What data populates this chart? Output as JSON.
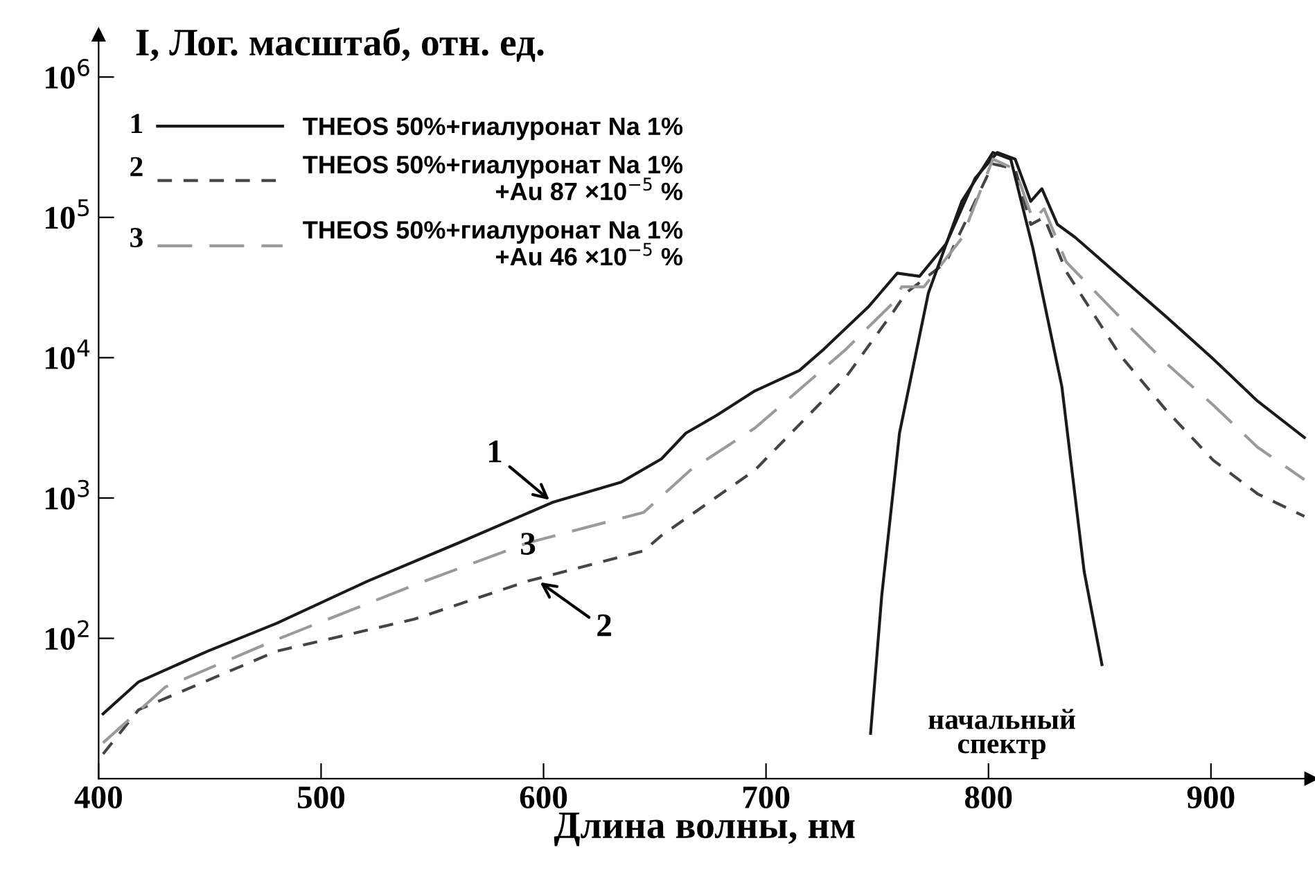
{
  "chart_data": {
    "type": "line",
    "xlabel": "Длина волны, нм",
    "ylabel": "I, Лог. масштаб, отн. ед.",
    "xlim": [
      400,
      945
    ],
    "xticks": [
      400,
      500,
      600,
      700,
      800,
      900
    ],
    "ylim": [
      10,
      2000000
    ],
    "log": true,
    "yticks": [
      {
        "value": 100,
        "label": "10$^{2}$"
      },
      {
        "value": 1000,
        "label": "10$^{3}$"
      },
      {
        "value": 10000,
        "label": "10$^{4}$"
      },
      {
        "value": 100000,
        "label": "10$^{5}$"
      },
      {
        "value": 1000000,
        "label": "10$^{6}$"
      }
    ],
    "grid": false,
    "legend": "top left",
    "series": [
      {
        "name": "THEOS 50%+гиалуронат Na 1%",
        "color": "#1a1a1a",
        "line_style": "solid",
        "x": [
          402,
          418,
          449,
          480,
          521,
          562,
          604,
          635,
          653,
          664,
          678,
          695,
          715,
          726,
          746,
          759,
          769,
          781,
          794,
          804,
          812,
          819,
          824,
          831,
          839,
          859,
          880,
          901,
          921,
          942
        ],
        "values": [
          29,
          49,
          81,
          128,
          256,
          480,
          930,
          1300,
          1900,
          2900,
          3900,
          5800,
          8100,
          11500,
          23000,
          40000,
          38000,
          65000,
          190000,
          290000,
          260000,
          130000,
          160000,
          89000,
          72000,
          38000,
          19500,
          9800,
          4900,
          2700
        ]
      },
      {
        "name": "THEOS 50%+гиалуронат Na 1%\n+Au 87 ×10$^{−5}$ %",
        "color": "#444444",
        "line_style": "dashed",
        "x": [
          402,
          418,
          480,
          542,
          593,
          645,
          653,
          695,
          736,
          757,
          763,
          781,
          802,
          812,
          819,
          825,
          835,
          859,
          880,
          901,
          921,
          942
        ],
        "values": [
          15,
          31,
          81,
          137,
          256,
          420,
          540,
          1580,
          7300,
          21000,
          29000,
          48000,
          240000,
          222000,
          89000,
          100000,
          41000,
          10500,
          4200,
          1860,
          1070,
          740
        ]
      },
      {
        "name": "THEOS 50%+гиалуронат Na 1%\n+Au 46 ×10$^{−5}$ %",
        "color": "#9a9a9a",
        "line_style": "dashed",
        "x": [
          402,
          430,
          480,
          542,
          593,
          645,
          666,
          695,
          736,
          757,
          761,
          771,
          788,
          802,
          812,
          820,
          825,
          835,
          859,
          880,
          901,
          921,
          942
        ],
        "values": [
          18,
          45,
          98,
          240,
          480,
          790,
          1580,
          3150,
          11500,
          24500,
          32000,
          32000,
          71000,
          260000,
          220000,
          96000,
          115000,
          48000,
          19500,
          9100,
          4600,
          2300,
          1350
        ]
      },
      {
        "color": "#1a1a1a",
        "line_style": "solid",
        "x": [
          747,
          752,
          760,
          773,
          788,
          802,
          810,
          820,
          833,
          843,
          851
        ],
        "values": [
          21,
          200,
          2900,
          29000,
          130000,
          290000,
          260000,
          60000,
          6200,
          300,
          65
        ]
      }
    ],
    "annotations": [
      {
        "text": "1",
        "x": 604,
        "y": 930
      },
      {
        "text": "2",
        "x": 597,
        "y": 260
      },
      {
        "text": "3",
        "x": 593,
        "y": 480
      },
      "начальный\nспектр",
      "1",
      "2",
      "3"
    ]
  }
}
